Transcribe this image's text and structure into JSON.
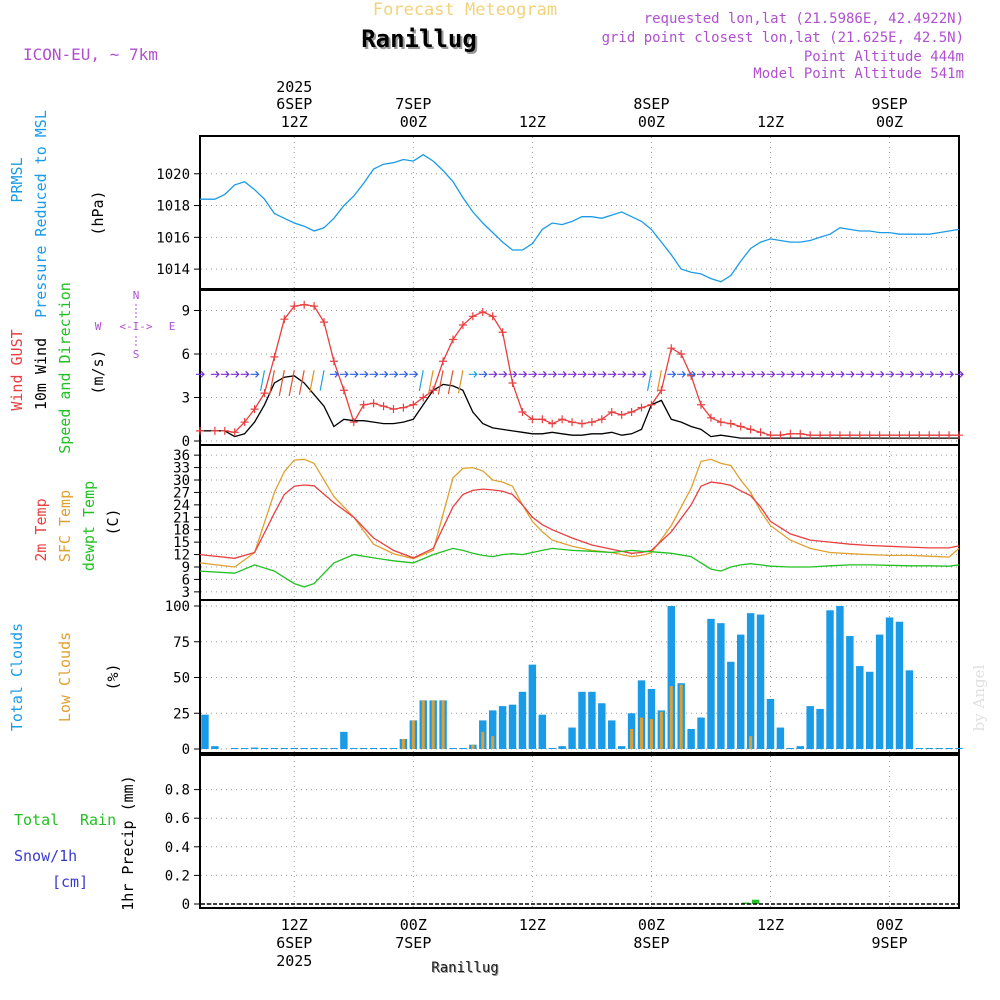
{
  "header": {
    "subtitle": "Forecast Meteogram",
    "location": "Ranillug",
    "model": "ICON-EU, ~ 7km",
    "requested": "requested lon,lat (21.5986E, 42.4922N)",
    "grid_point": "grid point closest lon,lat (21.625E, 42.5N)",
    "point_altitude": "Point Altitude 444m",
    "model_altitude": "Model Point Altitude 541m"
  },
  "time_axis": {
    "top_ticks": [
      {
        "line1": "2025",
        "line2": "6SEP",
        "line3": "12Z"
      },
      {
        "line1": "",
        "line2": "7SEP",
        "line3": "00Z"
      },
      {
        "line1": "",
        "line2": "",
        "line3": "12Z"
      },
      {
        "line1": "",
        "line2": "8SEP",
        "line3": "00Z"
      },
      {
        "line1": "",
        "line2": "",
        "line3": "12Z"
      },
      {
        "line1": "",
        "line2": "9SEP",
        "line3": "00Z"
      }
    ],
    "bottom_ticks": [
      {
        "line1": "12Z",
        "line2": "6SEP",
        "line3": "2025"
      },
      {
        "line1": "00Z",
        "line2": "7SEP",
        "line3": ""
      },
      {
        "line1": "12Z",
        "line2": "",
        "line3": ""
      },
      {
        "line1": "00Z",
        "line2": "8SEP",
        "line3": ""
      },
      {
        "line1": "12Z",
        "line2": "",
        "line3": ""
      },
      {
        "line1": "00Z",
        "line2": "9SEP",
        "line3": ""
      }
    ],
    "tick_hours": [
      12,
      24,
      36,
      48,
      60,
      72
    ],
    "start_hour": 2.5,
    "end_hour": 79,
    "footer_label": "Ranillug"
  },
  "panels": {
    "pressure": {
      "label1": "PRMSL",
      "label2": "Pressure Reduced to MSL",
      "unit": "(hPa)",
      "ticks": [
        "1014",
        "1016",
        "1018",
        "1020"
      ]
    },
    "wind": {
      "label_gust": "Wind GUST",
      "label_wind": "10m Wind",
      "label_dir": "Speed and Direction",
      "unit": "(m/s)",
      "ticks": [
        "0",
        "3",
        "6",
        "9"
      ],
      "compass": {
        "n": "N",
        "s": "S",
        "w": "W",
        "e": "E",
        "arrows": "<-I->"
      }
    },
    "temp": {
      "label_2m": "2m Temp",
      "label_sfc": "SFC Temp",
      "label_dew": "dewpt Temp",
      "unit": "(C)",
      "ticks": [
        "3",
        "6",
        "9",
        "12",
        "15",
        "18",
        "21",
        "24",
        "27",
        "30",
        "33",
        "36"
      ]
    },
    "clouds": {
      "label_total": "Total Clouds",
      "label_low": "Low Clouds",
      "unit": "(%)",
      "ticks": [
        "0",
        "25",
        "50",
        "75",
        "100"
      ],
      "watermark": "by Angel"
    },
    "precip": {
      "label_rain_a": "Total",
      "label_rain_b": "Rain",
      "label_snow": "Snow/1h",
      "label_cm": "[cm]",
      "label_axis": "1hr Precip (mm)",
      "ticks": [
        "0",
        "0.2",
        "0.4",
        "0.6",
        "0.8"
      ]
    }
  },
  "colors": {
    "pressure": "#1a9be8",
    "gust": "#e84040",
    "wind": "#000000",
    "t2m": "#e84040",
    "tsfc": "#e0a030",
    "dew": "#22c022",
    "cloud_total": "#1a9be8",
    "cloud_low": "#e0a030",
    "rain": "#22c022",
    "label_purple": "#b050d0",
    "snow": "#3a3ad0"
  },
  "chart_data": {
    "type": "line",
    "x_unit": "hours since 2025-09-06 00Z",
    "pressure": {
      "ylim": [
        1013,
        1022
      ],
      "x": [
        2.5,
        4,
        5,
        6,
        7,
        8,
        9,
        10,
        11,
        12,
        13,
        14,
        15,
        16,
        17,
        18,
        19,
        20,
        21,
        22,
        23,
        24,
        25,
        26,
        27,
        28,
        29,
        30,
        31,
        32,
        33,
        34,
        35,
        36,
        37,
        38,
        39,
        40,
        41,
        42,
        43,
        44,
        45,
        46,
        47,
        48,
        49,
        50,
        51,
        52,
        53,
        54,
        55,
        56,
        57,
        58,
        59,
        60,
        61,
        62,
        63,
        64,
        65,
        66,
        67,
        68,
        69,
        70,
        71,
        72,
        73,
        74,
        75,
        76,
        77,
        78,
        79
      ],
      "values": [
        1018.4,
        1018.4,
        1018.7,
        1019.3,
        1019.5,
        1019.0,
        1018.4,
        1017.5,
        1017.2,
        1016.9,
        1016.7,
        1016.4,
        1016.6,
        1017.2,
        1018.0,
        1018.6,
        1019.4,
        1020.3,
        1020.6,
        1020.7,
        1020.9,
        1020.8,
        1021.2,
        1020.8,
        1020.2,
        1019.5,
        1018.5,
        1017.6,
        1016.9,
        1016.3,
        1015.7,
        1015.2,
        1015.2,
        1015.6,
        1016.5,
        1016.9,
        1016.8,
        1017.0,
        1017.3,
        1017.3,
        1017.2,
        1017.4,
        1017.6,
        1017.3,
        1017.0,
        1016.5,
        1015.7,
        1014.9,
        1014.0,
        1013.8,
        1013.7,
        1013.4,
        1013.2,
        1013.6,
        1014.5,
        1015.3,
        1015.7,
        1015.9,
        1015.8,
        1015.7,
        1015.7,
        1015.8,
        1016.0,
        1016.2,
        1016.6,
        1016.5,
        1016.4,
        1016.4,
        1016.3,
        1016.3,
        1016.2,
        1016.2,
        1016.2,
        1016.2,
        1016.3,
        1016.4,
        1016.5
      ]
    },
    "wind": {
      "ylim": [
        0,
        10
      ],
      "x": [
        2.5,
        4,
        5,
        6,
        7,
        8,
        9,
        10,
        11,
        12,
        13,
        14,
        15,
        16,
        17,
        18,
        19,
        20,
        21,
        22,
        23,
        24,
        25,
        26,
        27,
        28,
        29,
        30,
        31,
        32,
        33,
        34,
        35,
        36,
        37,
        38,
        39,
        40,
        41,
        42,
        43,
        44,
        45,
        46,
        47,
        48,
        49,
        50,
        51,
        52,
        53,
        54,
        55,
        56,
        57,
        58,
        59,
        60,
        61,
        62,
        63,
        64,
        65,
        66,
        67,
        68,
        69,
        70,
        71,
        72,
        73,
        74,
        75,
        76,
        77,
        78,
        79
      ],
      "gust": [
        0.7,
        0.7,
        0.7,
        0.6,
        1.3,
        2.2,
        3.3,
        5.8,
        8.4,
        9.3,
        9.4,
        9.3,
        8.2,
        5.5,
        3.5,
        1.3,
        2.5,
        2.6,
        2.4,
        2.2,
        2.3,
        2.5,
        3.0,
        3.5,
        5.5,
        7.0,
        8.0,
        8.6,
        8.9,
        8.6,
        7.5,
        4.0,
        2.0,
        1.5,
        1.5,
        1.2,
        1.5,
        1.3,
        1.2,
        1.3,
        1.5,
        2.0,
        1.8,
        2.0,
        2.3,
        2.5,
        3.5,
        6.4,
        6.0,
        4.5,
        2.5,
        1.6,
        1.3,
        1.2,
        1.0,
        0.8,
        0.6,
        0.4,
        0.4,
        0.5,
        0.5,
        0.4,
        0.4,
        0.4,
        0.4,
        0.4,
        0.4,
        0.4,
        0.4,
        0.4,
        0.4,
        0.4,
        0.4,
        0.4,
        0.4,
        0.4,
        0.4
      ],
      "speed": [
        0.7,
        0.7,
        0.7,
        0.3,
        0.5,
        1.3,
        2.5,
        4.0,
        4.4,
        4.5,
        4.0,
        3.2,
        2.4,
        1.0,
        1.5,
        1.4,
        1.4,
        1.3,
        1.2,
        1.2,
        1.3,
        1.5,
        2.5,
        3.5,
        3.9,
        3.8,
        3.5,
        2.0,
        1.2,
        0.9,
        0.8,
        0.7,
        0.6,
        0.5,
        0.5,
        0.6,
        0.5,
        0.4,
        0.4,
        0.5,
        0.5,
        0.6,
        0.4,
        0.5,
        0.8,
        2.5,
        2.8,
        1.5,
        1.3,
        1.0,
        0.8,
        0.3,
        0.4,
        0.3,
        0.2,
        0.2,
        0.2,
        0.2,
        0.2,
        0.2,
        0.2,
        0.2,
        0.2,
        0.2,
        0.2,
        0.2,
        0.2,
        0.2,
        0.2,
        0.2,
        0.2,
        0.2,
        0.2,
        0.2,
        0.2,
        0.2,
        0.2
      ]
    },
    "temperature": {
      "ylim": [
        2,
        37
      ],
      "x": [
        2.5,
        6,
        8,
        10,
        11,
        12,
        13,
        14,
        16,
        18,
        20,
        22,
        24,
        26,
        28,
        29,
        30,
        31,
        32,
        33,
        34,
        35,
        36,
        37,
        38,
        40,
        42,
        44,
        46,
        47,
        48,
        50,
        52,
        53,
        54,
        55,
        56,
        57,
        58,
        59,
        60,
        62,
        64,
        66,
        68,
        70,
        72,
        74,
        76,
        78,
        79
      ],
      "t2m": [
        12.0,
        11.1,
        12.5,
        22.0,
        26.5,
        28.5,
        28.8,
        28.6,
        24.5,
        21.0,
        16.0,
        13.0,
        11.2,
        13.5,
        23.5,
        26.5,
        27.5,
        27.8,
        27.6,
        27.3,
        26.5,
        24.0,
        21.0,
        19.2,
        18.0,
        16.0,
        14.3,
        13.3,
        12.3,
        12.5,
        13.0,
        17.5,
        24.0,
        28.5,
        29.5,
        29.2,
        28.7,
        27.4,
        26.2,
        23.5,
        20.0,
        17.0,
        15.5,
        15.0,
        14.5,
        14.2,
        14.0,
        13.8,
        13.6,
        13.6,
        14.1
      ],
      "tsfc": [
        10.0,
        9.0,
        12.5,
        27.0,
        32.0,
        34.8,
        35.0,
        34.0,
        26.0,
        21.0,
        14.5,
        12.2,
        11.0,
        13.0,
        30.5,
        32.8,
        33.0,
        32.2,
        30.0,
        29.5,
        28.5,
        24.0,
        20.0,
        17.5,
        15.5,
        14.0,
        13.0,
        12.5,
        11.5,
        11.8,
        12.4,
        19.0,
        28.0,
        34.5,
        35.0,
        34.0,
        33.5,
        30.0,
        27.0,
        22.5,
        19.0,
        15.5,
        13.5,
        12.5,
        12.2,
        12.0,
        11.8,
        11.8,
        11.6,
        11.4,
        13.5
      ],
      "dew": [
        8.0,
        7.5,
        9.5,
        8.0,
        6.5,
        5.0,
        4.2,
        5.0,
        10.0,
        12.0,
        11.2,
        10.5,
        10.0,
        12.0,
        13.5,
        13.0,
        12.3,
        11.8,
        11.5,
        12.0,
        12.2,
        12.0,
        12.5,
        13.0,
        13.5,
        13.0,
        12.8,
        12.5,
        13.0,
        12.8,
        12.7,
        12.3,
        11.5,
        10.0,
        8.5,
        8.0,
        9.0,
        9.5,
        9.8,
        9.5,
        9.2,
        9.0,
        9.0,
        9.3,
        9.5,
        9.5,
        9.4,
        9.3,
        9.3,
        9.2,
        9.5
      ]
    },
    "clouds": {
      "ylim": [
        0,
        100
      ],
      "x": [
        3,
        4,
        6,
        7,
        8,
        9,
        10,
        11,
        12,
        13,
        14,
        15,
        16,
        17,
        18,
        19,
        20,
        21,
        22,
        23,
        24,
        25,
        26,
        27,
        28,
        29,
        30,
        31,
        32,
        33,
        34,
        35,
        36,
        37,
        38,
        39,
        40,
        41,
        42,
        43,
        44,
        45,
        46,
        47,
        48,
        49,
        50,
        51,
        52,
        53,
        54,
        55,
        56,
        57,
        58,
        59,
        60,
        61,
        62,
        63,
        64,
        65,
        66,
        67,
        68,
        69,
        70,
        71,
        72,
        73,
        74,
        75,
        76,
        77,
        78,
        79
      ],
      "total": [
        24,
        2,
        0,
        0,
        1,
        0,
        0,
        0,
        0,
        0,
        0,
        0,
        0,
        12,
        0,
        0,
        0,
        0,
        0,
        7,
        20,
        34,
        34,
        34,
        0,
        0,
        3,
        20,
        27,
        30,
        31,
        40,
        59,
        24,
        0,
        2,
        15,
        40,
        40,
        32,
        20,
        2,
        25,
        48,
        42,
        27,
        100,
        46,
        14,
        22,
        91,
        88,
        61,
        80,
        95,
        94,
        35,
        15,
        0,
        2,
        30,
        28,
        97,
        100,
        79,
        58,
        54,
        80,
        92,
        89,
        55,
        0,
        0,
        0,
        0,
        0
      ],
      "low": [
        0,
        0,
        0,
        0,
        0,
        0,
        0,
        0,
        0,
        0,
        0,
        0,
        0,
        0,
        0,
        0,
        0,
        0,
        0,
        7,
        20,
        34,
        34,
        34,
        0,
        0,
        3,
        12,
        9,
        0,
        0,
        0,
        0,
        0,
        0,
        0,
        0,
        0,
        0,
        0,
        0,
        0,
        14,
        22,
        21,
        26,
        44,
        45,
        0,
        0,
        0,
        0,
        0,
        0,
        9,
        0,
        0,
        0,
        0,
        0,
        0,
        0,
        0,
        0,
        0,
        0,
        0,
        0,
        0,
        0,
        0,
        0,
        0,
        0,
        0,
        0
      ]
    },
    "precip": {
      "ylim": [
        0,
        1
      ],
      "x": [
        57.5,
        58.5
      ],
      "rain": [
        0.01,
        0.03
      ],
      "snow": [
        0,
        0
      ]
    }
  }
}
